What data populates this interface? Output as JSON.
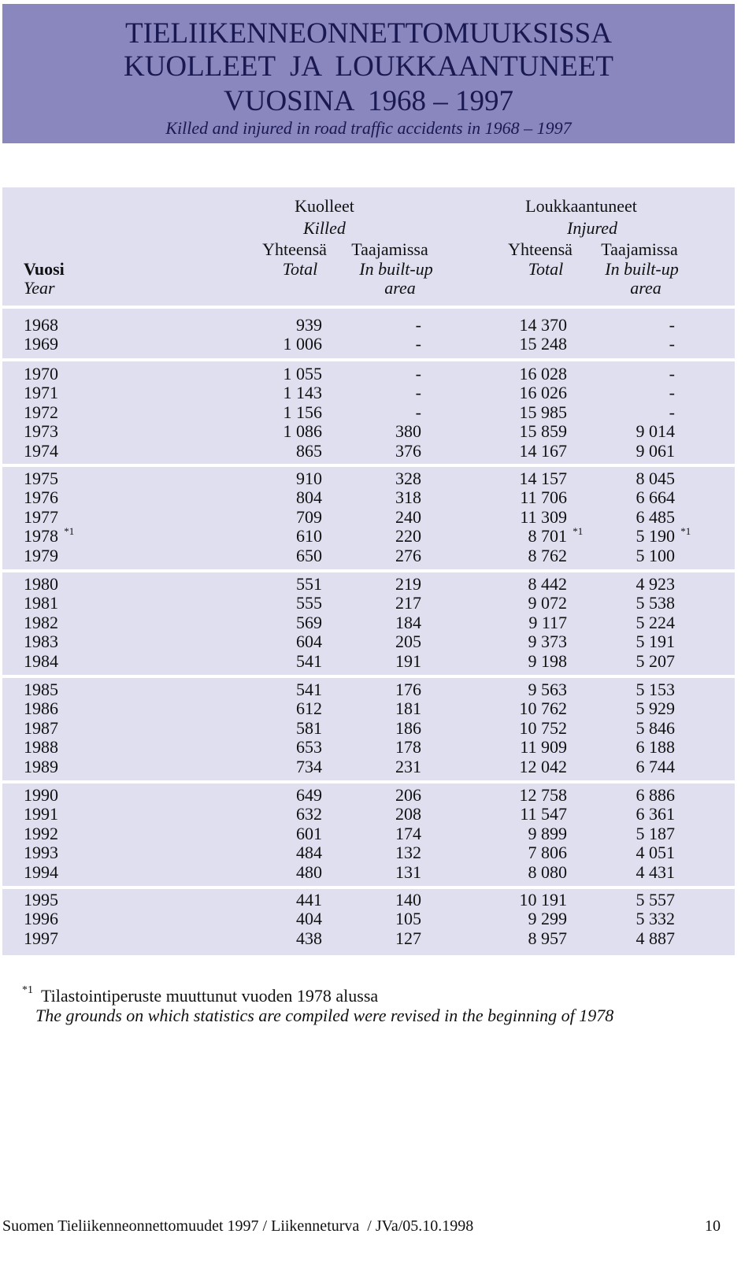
{
  "header": {
    "title_lines": [
      "TIELIIKENNEONNETTOMUUKSISSA",
      "KUOLLEET  JA  LOUKKAANTUNEET",
      "VUOSINA  1968 – 1997"
    ],
    "subtitle": "Killed and injured in road traffic accidents in 1968 – 1997"
  },
  "table": {
    "year_header": {
      "fi": "Vuosi",
      "en": "Year"
    },
    "groups": [
      {
        "fi": "Kuolleet",
        "en": "Killed",
        "columns": [
          {
            "fi": "Yhteensä",
            "en": [
              "Total"
            ]
          },
          {
            "fi": "Taajamissa",
            "en": [
              "In built-up",
              "area"
            ]
          }
        ]
      },
      {
        "fi": "Loukkaantuneet",
        "en": "Injured",
        "columns": [
          {
            "fi": "Yhteensä",
            "en": [
              "Total"
            ]
          },
          {
            "fi": "Taajamissa",
            "en": [
              "In built-up",
              "area"
            ]
          }
        ]
      }
    ],
    "blocks": [
      [
        [
          "1968",
          "939",
          "-",
          "14 370",
          "-"
        ],
        [
          "1969",
          "1 006",
          "-",
          "15 248",
          "-"
        ]
      ],
      [
        [
          "1970",
          "1 055",
          "-",
          "16 028",
          "-"
        ],
        [
          "1971",
          "1 143",
          "-",
          "16 026",
          "-"
        ],
        [
          "1972",
          "1 156",
          "-",
          "15 985",
          "-"
        ],
        [
          "1973",
          "1 086",
          "380",
          "15 859",
          "9 014"
        ],
        [
          "1974",
          "865",
          "376",
          "14 167",
          "9 061"
        ]
      ],
      [
        [
          "1975",
          "910",
          "328",
          "14 157",
          "8 045"
        ],
        [
          "1976",
          "804",
          "318",
          "11 706",
          "6 664"
        ],
        [
          "1977",
          "709",
          "240",
          "11 309",
          "6 485"
        ],
        [
          {
            "text": "1978",
            "note": "*1"
          },
          "610",
          "220",
          {
            "text": "8 701",
            "note": "*1"
          },
          {
            "text": "5 190",
            "note": "*1"
          }
        ],
        [
          "1979",
          "650",
          "276",
          "8 762",
          "5 100"
        ]
      ],
      [
        [
          "1980",
          "551",
          "219",
          "8 442",
          "4 923"
        ],
        [
          "1981",
          "555",
          "217",
          "9 072",
          "5 538"
        ],
        [
          "1982",
          "569",
          "184",
          "9 117",
          "5 224"
        ],
        [
          "1983",
          "604",
          "205",
          "9 373",
          "5 191"
        ],
        [
          "1984",
          "541",
          "191",
          "9 198",
          "5 207"
        ]
      ],
      [
        [
          "1985",
          "541",
          "176",
          "9 563",
          "5 153"
        ],
        [
          "1986",
          "612",
          "181",
          "10 762",
          "5 929"
        ],
        [
          "1987",
          "581",
          "186",
          "10 752",
          "5 846"
        ],
        [
          "1988",
          "653",
          "178",
          "11 909",
          "6 188"
        ],
        [
          "1989",
          "734",
          "231",
          "12 042",
          "6 744"
        ]
      ],
      [
        [
          "1990",
          "649",
          "206",
          "12 758",
          "6 886"
        ],
        [
          "1991",
          "632",
          "208",
          "11 547",
          "6 361"
        ],
        [
          "1992",
          "601",
          "174",
          "9 899",
          "5 187"
        ],
        [
          "1993",
          "484",
          "132",
          "7 806",
          "4 051"
        ],
        [
          "1994",
          "480",
          "131",
          "8 080",
          "4 431"
        ]
      ],
      [
        [
          "1995",
          "441",
          "140",
          "10 191",
          "5 557"
        ],
        [
          "1996",
          "404",
          "105",
          "9 299",
          "5 332"
        ],
        [
          "1997",
          "438",
          "127",
          "8 957",
          "4 887"
        ]
      ]
    ]
  },
  "footnote": {
    "mark": "*1",
    "fi": "Tilastointiperuste muuttunut vuoden 1978 alussa",
    "en": "The grounds on which statistics are compiled were revised in the beginning of 1978"
  },
  "footer": {
    "text": "Suomen Tieliikenneonnettomuudet 1997 / Liikenneturva  / JVa/05.10.1998",
    "page": "10"
  }
}
